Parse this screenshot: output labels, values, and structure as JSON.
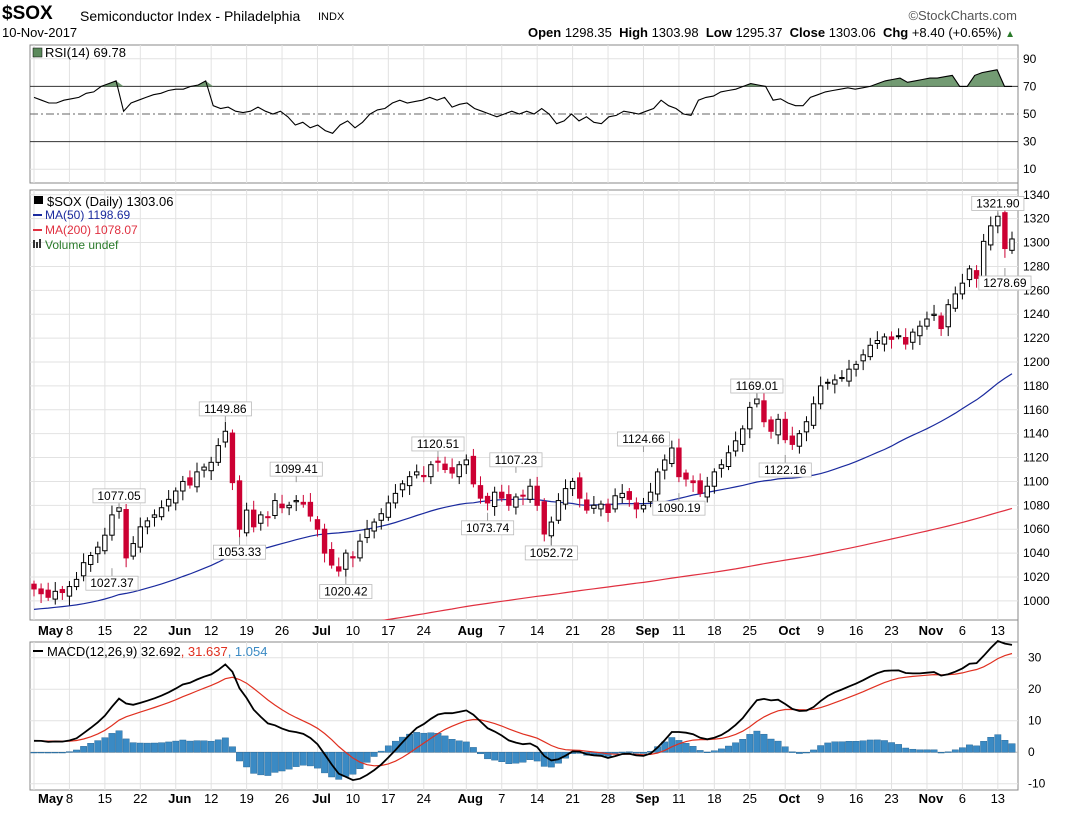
{
  "header": {
    "symbol": "$SOX",
    "name": "Semiconductor Index - Philadelphia",
    "exchange": "INDX",
    "brand": "©StockCharts.com",
    "date": "10-Nov-2017",
    "open_label": "Open",
    "open": "1298.35",
    "high_label": "High",
    "high": "1303.98",
    "low_label": "Low",
    "low": "1295.37",
    "close_label": "Close",
    "close": "1303.06",
    "chg_label": "Chg",
    "chg": "+8.40 (+0.65%)"
  },
  "colors": {
    "up": "#000000",
    "down": "#cc0033",
    "ma50": "#1a2a9e",
    "ma200": "#e03040",
    "rsi_fill": "#5b8a5b",
    "macd": "#000000",
    "signal": "#e03020",
    "hist": "#3a8ac4"
  },
  "chart_data": [
    {
      "type": "line",
      "name": "RSI",
      "legend": "RSI(14) 69.78",
      "y_ticks": [
        "90",
        "70",
        "50",
        "30",
        "10"
      ],
      "ylim": [
        0,
        100
      ],
      "values": [
        62,
        60,
        58,
        58,
        60,
        61,
        62,
        65,
        66,
        70,
        72,
        74,
        52,
        58,
        60,
        62,
        64,
        65,
        67,
        68,
        68,
        70,
        71,
        74,
        56,
        54,
        55,
        52,
        51,
        52,
        55,
        52,
        50,
        52,
        48,
        42,
        44,
        40,
        42,
        38,
        36,
        42,
        45,
        40,
        44,
        50,
        53,
        54,
        58,
        60,
        58,
        59,
        60,
        62,
        60,
        62,
        55,
        57,
        58,
        54,
        52,
        50,
        48,
        50,
        52,
        50,
        52,
        50,
        54,
        50,
        43,
        45,
        50,
        45,
        48,
        44,
        43,
        48,
        49,
        52,
        51,
        50,
        52,
        54,
        60,
        56,
        54,
        50,
        49,
        60,
        62,
        63,
        66,
        67,
        68,
        70,
        72,
        71,
        70,
        60,
        61,
        58,
        56,
        56,
        62,
        64,
        66,
        67,
        68,
        69,
        68,
        69,
        70,
        72,
        74,
        75,
        76,
        73,
        74,
        75,
        76,
        76,
        77,
        78,
        70,
        70,
        78,
        80,
        81,
        82,
        70,
        70
      ]
    },
    {
      "type": "candlestick",
      "name": "$SOX",
      "legend": "$SOX (Daily) 1303.06",
      "ma50_legend": "MA(50) 1198.69",
      "ma200_legend": "MA(200) 1078.07",
      "volume_legend": "Volume undef",
      "y_ticks": [
        "1340",
        "1320",
        "1300",
        "1280",
        "1260",
        "1240",
        "1220",
        "1200",
        "1180",
        "1160",
        "1140",
        "1120",
        "1100",
        "1080",
        "1060",
        "1040",
        "1020",
        "1000"
      ],
      "ylim": [
        984,
        1344
      ],
      "x_labels": [
        "May",
        "8",
        "15",
        "22",
        "Jun",
        "12",
        "19",
        "26",
        "Jul",
        "10",
        "17",
        "24",
        "Aug",
        "7",
        "14",
        "21",
        "28",
        "Sep",
        "11",
        "18",
        "25",
        "Oct",
        "9",
        "16",
        "23",
        "Nov",
        "6",
        "13"
      ],
      "close": [
        1010,
        1006,
        1003,
        1008,
        1007,
        1012,
        1018,
        1032,
        1038,
        1045,
        1055,
        1072,
        1078,
        1036,
        1048,
        1062,
        1067,
        1072,
        1078,
        1085,
        1092,
        1100,
        1097,
        1108,
        1112,
        1116,
        1130,
        1142,
        1099,
        1060,
        1076,
        1062,
        1072,
        1070,
        1084,
        1078,
        1080,
        1084,
        1081,
        1071,
        1060,
        1040,
        1030,
        1025,
        1040,
        1036,
        1050,
        1060,
        1066,
        1073,
        1082,
        1090,
        1098,
        1104,
        1108,
        1104,
        1114,
        1116,
        1110,
        1107,
        1114,
        1118,
        1098,
        1086,
        1082,
        1091,
        1086,
        1080,
        1087,
        1088,
        1096,
        1080,
        1056,
        1066,
        1084,
        1094,
        1100,
        1086,
        1076,
        1080,
        1081,
        1074,
        1088,
        1090,
        1085,
        1077,
        1080,
        1091,
        1108,
        1118,
        1128,
        1104,
        1102,
        1099,
        1090,
        1096,
        1108,
        1114,
        1124,
        1134,
        1144,
        1162,
        1169,
        1150,
        1142,
        1152,
        1135,
        1131,
        1140,
        1150,
        1165,
        1180,
        1183,
        1185,
        1187,
        1194,
        1198,
        1206,
        1214,
        1218,
        1221,
        1219,
        1222,
        1215,
        1225,
        1230,
        1236,
        1240,
        1228,
        1248,
        1257,
        1266,
        1278,
        1270,
        1301,
        1314,
        1322,
        1295,
        1303
      ],
      "annotations": [
        {
          "label": "1027.37",
          "i": 11,
          "v": 1027.37,
          "pos": "below"
        },
        {
          "label": "1077.05",
          "i": 12,
          "v": 1077.05,
          "pos": "above"
        },
        {
          "label": "1149.86",
          "i": 27,
          "v": 1149.86,
          "pos": "above"
        },
        {
          "label": "1053.33",
          "i": 29,
          "v": 1053.33,
          "pos": "below"
        },
        {
          "label": "1099.41",
          "i": 37,
          "v": 1099.41,
          "pos": "above"
        },
        {
          "label": "1020.42",
          "i": 44,
          "v": 1020.42,
          "pos": "below"
        },
        {
          "label": "1120.51",
          "i": 57,
          "v": 1120.51,
          "pos": "above"
        },
        {
          "label": "1073.74",
          "i": 64,
          "v": 1073.74,
          "pos": "below"
        },
        {
          "label": "1107.23",
          "i": 68,
          "v": 1107.23,
          "pos": "above"
        },
        {
          "label": "1052.72",
          "i": 73,
          "v": 1052.72,
          "pos": "below"
        },
        {
          "label": "1124.66",
          "i": 86,
          "v": 1124.66,
          "pos": "above"
        },
        {
          "label": "1090.19",
          "i": 91,
          "v": 1090.19,
          "pos": "below"
        },
        {
          "label": "1169.01",
          "i": 102,
          "v": 1169.01,
          "pos": "above"
        },
        {
          "label": "1122.16",
          "i": 106,
          "v": 1122.16,
          "pos": "below"
        },
        {
          "label": "1321.90",
          "i": 136,
          "v": 1321.9,
          "pos": "above"
        },
        {
          "label": "1278.69",
          "i": 137,
          "v": 1278.69,
          "pos": "below"
        }
      ]
    },
    {
      "type": "line",
      "name": "MACD",
      "legend_parts": [
        "MACD(12,26,9)",
        "32.692",
        "31.637",
        "1.054"
      ],
      "y_ticks": [
        "30",
        "20",
        "10",
        "0",
        "-10"
      ],
      "ylim": [
        -12,
        35
      ]
    }
  ]
}
